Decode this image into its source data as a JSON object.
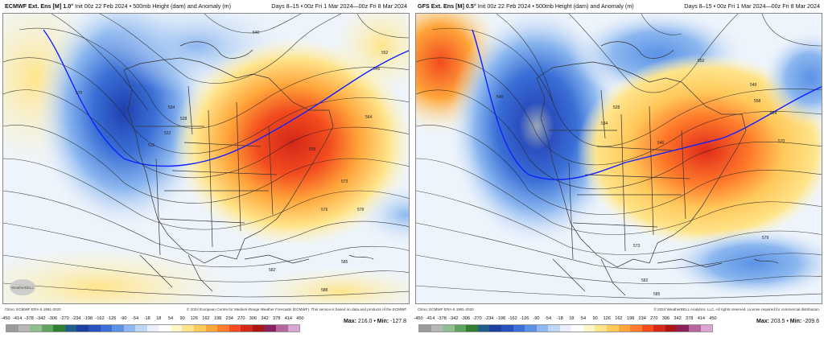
{
  "panels": [
    {
      "id": "ecmwf",
      "model_title": "ECMWF Ext. Ens [M] 1.0°",
      "init": "Init 00z 22 Feb 2024",
      "field": "500mb Height (dam) and Anomaly (m)",
      "valid": "Days 8–15 • 00z Fri 1 Mar 2024—00z Fri 8 Mar 2024",
      "climo": "Climo: ECMWF ERA-5 1991-2020",
      "copyright": "© 2024 European Centre for Medium-Range Weather Forecasts (ECMWF). This service is based on data and products of the ECMWF.",
      "max_label": "Max:",
      "max_value": "216.0",
      "min_label": "Min:",
      "min_value": "-127.8",
      "contour_labels": [
        "516",
        "522",
        "528",
        "534",
        "540",
        "546",
        "552",
        "558",
        "564",
        "570",
        "573",
        "576",
        "579",
        "582",
        "585",
        "588"
      ]
    },
    {
      "id": "gfs",
      "model_title": "GFS Ext. Ens [M] 0.5°",
      "init": "Init 00z 22 Feb 2024",
      "field": "500mb Height (dam) and Anomaly (m)",
      "valid": "Days 8–15 • 00z Fri 1 Mar 2024—00z Fri 8 Mar 2024",
      "climo": "Climo: ECMWF ERA-5 1991-2020",
      "copyright": "© 2024 WeatherBELL Analytics, LLC. All rights reserved. License required for commercial distribution.",
      "max_label": "Max:",
      "max_value": "203.5",
      "min_label": "Min:",
      "min_value": "-209.6",
      "contour_labels": [
        "528",
        "534",
        "540",
        "546",
        "549",
        "552",
        "558",
        "564",
        "570",
        "573",
        "579",
        "582",
        "585"
      ]
    }
  ],
  "colorbar": {
    "ticks": [
      "-450",
      "-414",
      "-378",
      "-342",
      "-306",
      "-270",
      "-234",
      "-198",
      "-162",
      "-126",
      "-90",
      "-54",
      "-18",
      "18",
      "54",
      "90",
      "126",
      "162",
      "198",
      "234",
      "270",
      "306",
      "342",
      "378",
      "414",
      "450"
    ],
    "colors": [
      "#9a9a9a",
      "#b7b7b7",
      "#8fbf8f",
      "#5fa35f",
      "#2f7f2f",
      "#1e5e8a",
      "#1f3f9f",
      "#2b4fbf",
      "#3a6fd6",
      "#5b92e5",
      "#8cb7ef",
      "#bcd6f6",
      "#e7f0fb",
      "#ffffff",
      "#fff7c9",
      "#ffe48a",
      "#ffc85a",
      "#ffa53a",
      "#ff7a2a",
      "#f24b1e",
      "#d5261a",
      "#aa1515",
      "#8a1f5a",
      "#b565a0",
      "#d9a6cf"
    ]
  },
  "logo_text": "WeatherBELL",
  "colors": {
    "blue_anomaly": "#2f5fd0",
    "red_anomaly": "#e8461f",
    "jet_line": "#1020ff"
  }
}
